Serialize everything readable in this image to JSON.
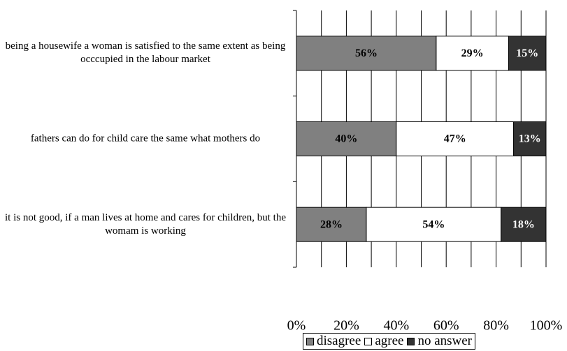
{
  "chart_data": {
    "type": "stacked_barh",
    "categories": [
      "being a housewife a woman is satisfied to the same extent as being occcupied in the labour market",
      "fathers can do for child care the same what mothers do",
      "it is not good, if a man lives at home and cares for children, but the womam is working"
    ],
    "series": [
      {
        "name": "disagree",
        "color": "#808080",
        "label_color": "#000000",
        "values": [
          56,
          40,
          28
        ],
        "value_labels": [
          "56%",
          "40%",
          "28%"
        ]
      },
      {
        "name": "agree",
        "color": "#ffffff",
        "label_color": "#000000",
        "values": [
          29,
          47,
          54
        ],
        "value_labels": [
          "29%",
          "47%",
          "54%"
        ]
      },
      {
        "name": "no answer",
        "color": "#333333",
        "label_color": "#ffffff",
        "values": [
          15,
          13,
          18
        ],
        "value_labels": [
          "15%",
          "13%",
          "18%"
        ]
      }
    ],
    "xlim": [
      0,
      100
    ],
    "xticks": [
      {
        "value": 0,
        "label": "0%"
      },
      {
        "value": 20,
        "label": "20%"
      },
      {
        "value": 40,
        "label": "40%"
      },
      {
        "value": 60,
        "label": "60%"
      },
      {
        "value": 80,
        "label": "80%"
      },
      {
        "value": 100,
        "label": "100%"
      }
    ],
    "minor_xticks": [
      10,
      30,
      50,
      70,
      90
    ],
    "grid": true,
    "legend": "bottom"
  }
}
